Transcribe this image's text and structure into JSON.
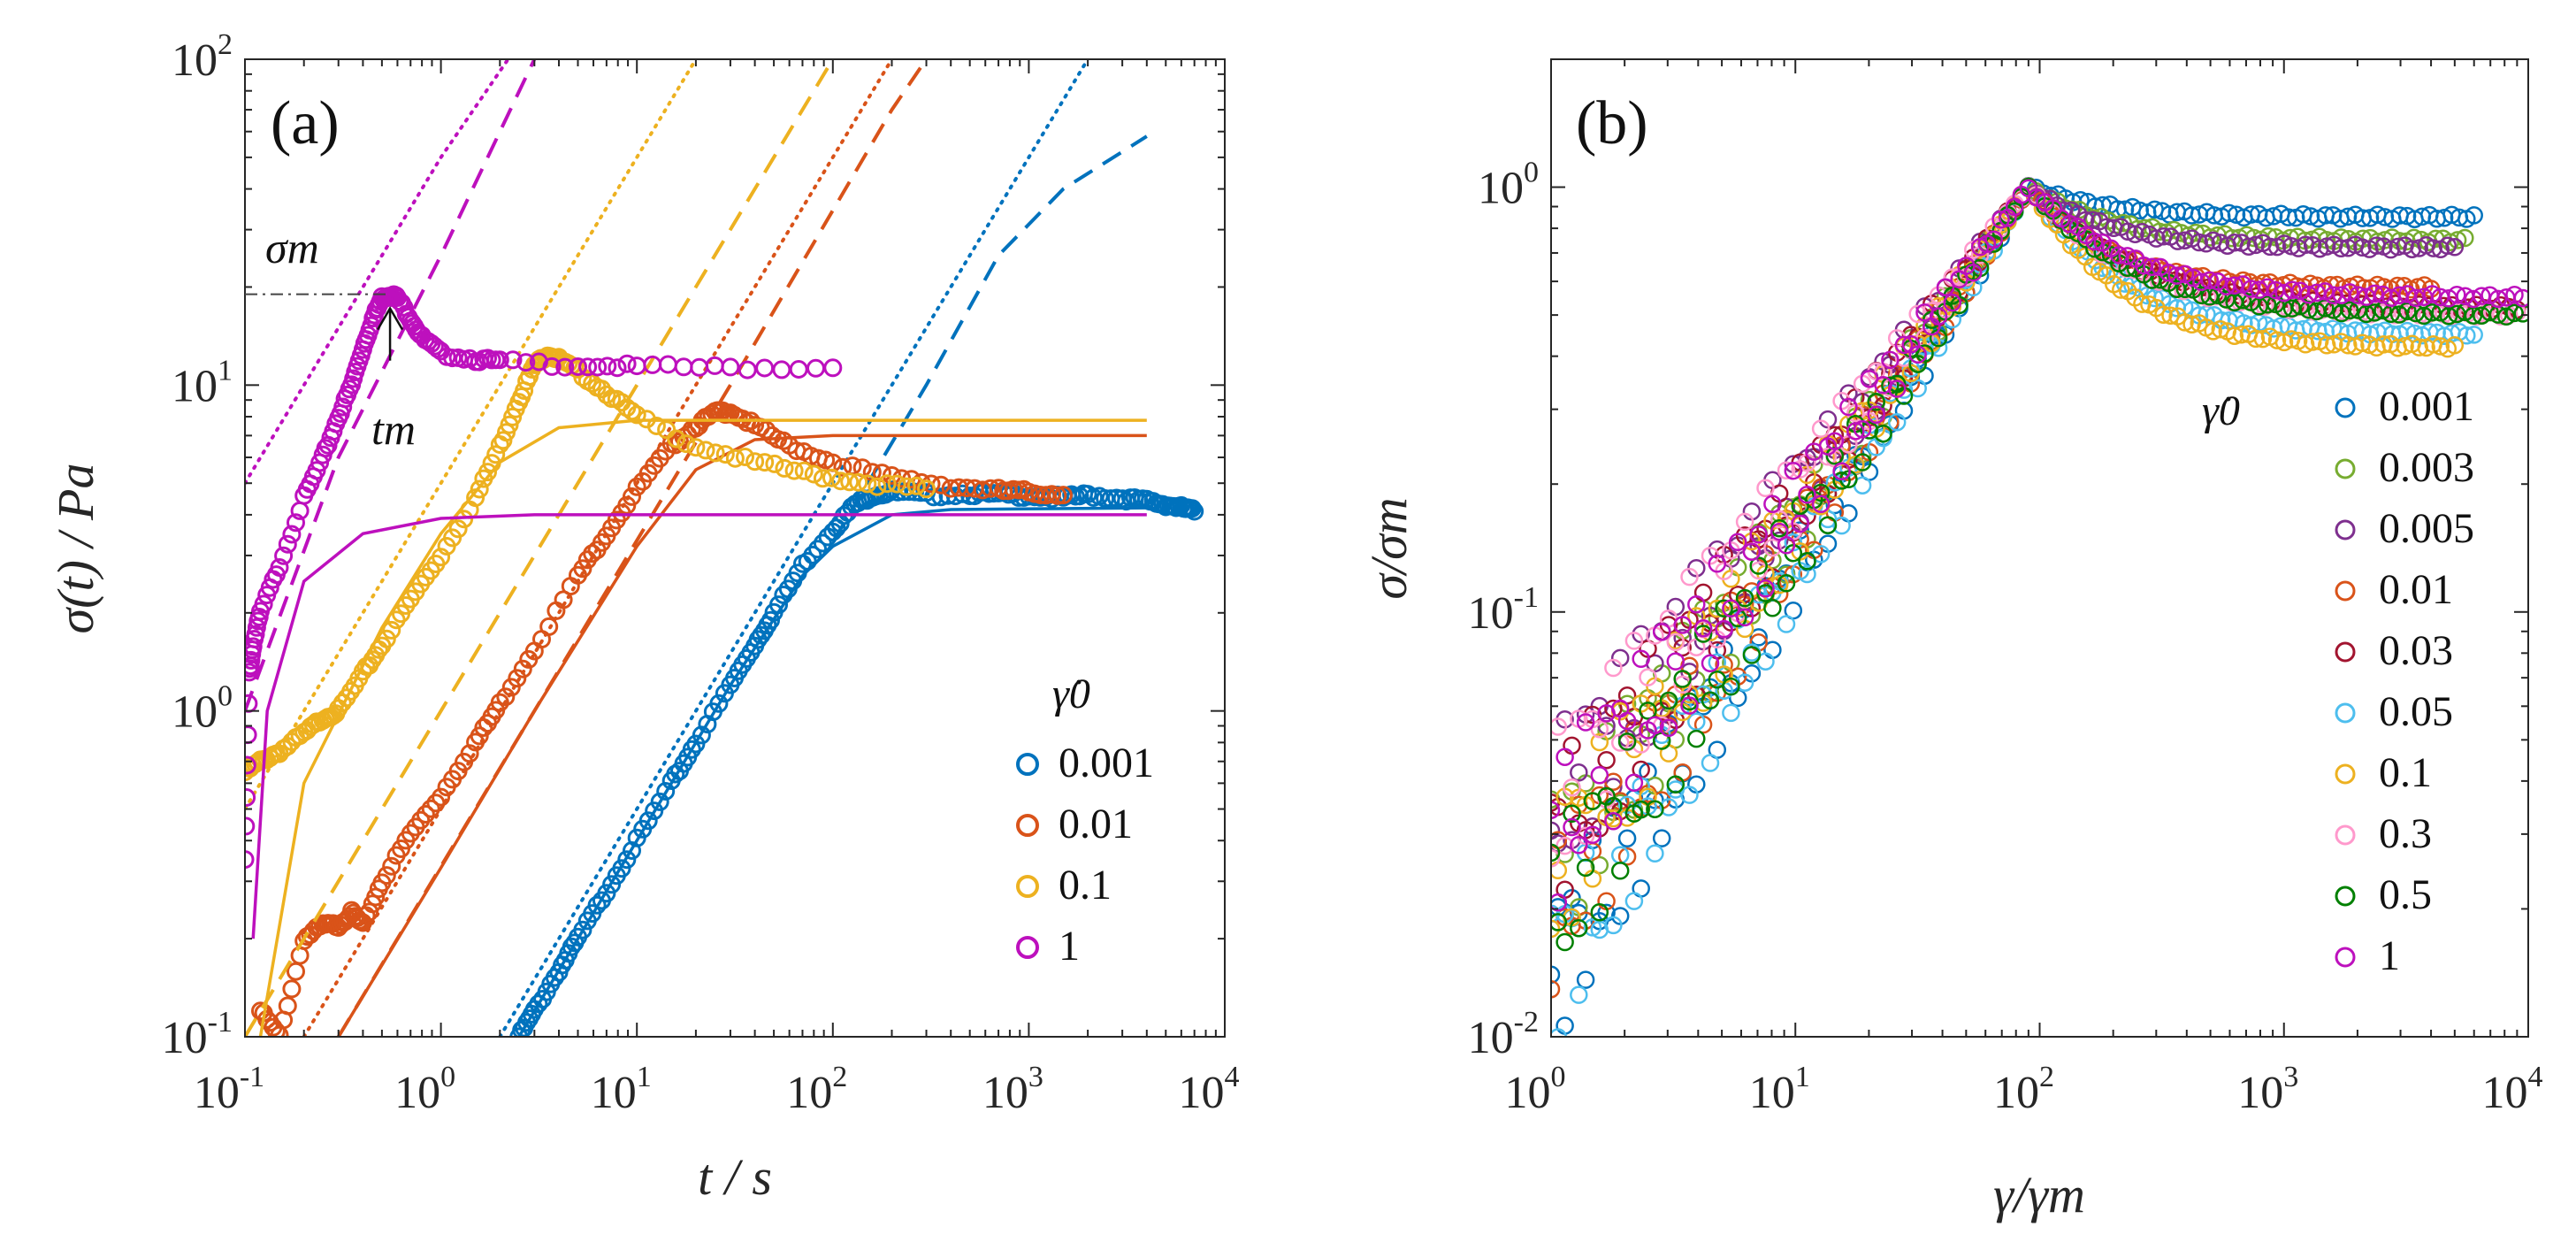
{
  "chart_data": [
    {
      "panel": "(a)",
      "type": "scatter",
      "xlabel": "t / s",
      "ylabel": "σ(t) / Pa",
      "xscale": "log",
      "yscale": "log",
      "xlim": [
        0.1,
        10000
      ],
      "ylim": [
        0.1,
        100
      ],
      "xticks": [
        {
          "base": "10",
          "exp": "-1",
          "v": 0.1
        },
        {
          "base": "10",
          "exp": "0",
          "v": 1
        },
        {
          "base": "10",
          "exp": "1",
          "v": 10
        },
        {
          "base": "10",
          "exp": "2",
          "v": 100
        },
        {
          "base": "10",
          "exp": "3",
          "v": 1000
        },
        {
          "base": "10",
          "exp": "4",
          "v": 10000
        }
      ],
      "yticks": [
        {
          "base": "10",
          "exp": "-1",
          "v": 0.1
        },
        {
          "base": "10",
          "exp": "0",
          "v": 1
        },
        {
          "base": "10",
          "exp": "1",
          "v": 10
        },
        {
          "base": "10",
          "exp": "2",
          "v": 100
        }
      ],
      "legend_title": "γ̇0",
      "legend_position": "lower-right",
      "annotations": {
        "sigma_m": "σm",
        "t_m": "tm",
        "sigma_m_value": 19,
        "t_m_value": 0.55
      },
      "series": [
        {
          "name": "0.001",
          "color": "#0072BD",
          "points": [
            [
              2.5,
              0.1
            ],
            [
              3,
              0.12
            ],
            [
              4,
              0.16
            ],
            [
              5,
              0.2
            ],
            [
              7,
              0.28
            ],
            [
              10,
              0.4
            ],
            [
              15,
              0.6
            ],
            [
              20,
              0.8
            ],
            [
              30,
              1.2
            ],
            [
              40,
              1.6
            ],
            [
              50,
              2.0
            ],
            [
              70,
              2.8
            ],
            [
              100,
              3.6
            ],
            [
              130,
              4.3
            ],
            [
              160,
              4.6
            ],
            [
              200,
              4.7
            ],
            [
              300,
              4.6
            ],
            [
              500,
              4.65
            ],
            [
              700,
              4.6
            ],
            [
              1000,
              4.6
            ],
            [
              1500,
              4.5
            ],
            [
              2000,
              4.6
            ],
            [
              3000,
              4.5
            ],
            [
              4000,
              4.4
            ],
            [
              5000,
              4.3
            ],
            [
              6000,
              4.2
            ],
            [
              7000,
              4.1
            ]
          ],
          "fit_solid": [
            [
              2.5,
              0.1
            ],
            [
              10,
              0.4
            ],
            [
              30,
              1.2
            ],
            [
              70,
              2.6
            ],
            [
              100,
              3.2
            ],
            [
              200,
              4.0
            ],
            [
              400,
              4.15
            ],
            [
              4000,
              4.2
            ]
          ],
          "fit_dashed": [
            [
              100,
              3.3
            ],
            [
              300,
              10
            ],
            [
              700,
              25
            ],
            [
              1500,
              40
            ],
            [
              4000,
              58
            ]
          ],
          "fit_dotted": [
            [
              2,
              0.1
            ],
            [
              20,
              1
            ],
            [
              200,
              10
            ],
            [
              1000,
              50
            ],
            [
              2000,
              100
            ]
          ]
        },
        {
          "name": "0.01",
          "color": "#D95319",
          "points": [
            [
              0.12,
              0.12
            ],
            [
              0.15,
              0.1
            ],
            [
              0.2,
              0.2
            ],
            [
              0.25,
              0.22
            ],
            [
              0.3,
              0.22
            ],
            [
              0.35,
              0.24
            ],
            [
              0.4,
              0.22
            ],
            [
              0.5,
              0.3
            ],
            [
              0.7,
              0.42
            ],
            [
              1,
              0.55
            ],
            [
              1.5,
              0.8
            ],
            [
              2,
              1.05
            ],
            [
              3,
              1.55
            ],
            [
              5,
              2.6
            ],
            [
              7,
              3.5
            ],
            [
              10,
              4.8
            ],
            [
              15,
              6.5
            ],
            [
              20,
              7.5
            ],
            [
              25,
              8.2
            ],
            [
              30,
              8.3
            ],
            [
              40,
              7.5
            ],
            [
              60,
              6.5
            ],
            [
              100,
              5.8
            ],
            [
              200,
              5.2
            ],
            [
              400,
              4.9
            ],
            [
              700,
              4.75
            ],
            [
              1000,
              4.7
            ],
            [
              1500,
              4.6
            ]
          ],
          "fit_solid": [
            [
              0.3,
              0.1
            ],
            [
              1,
              0.33
            ],
            [
              3,
              1.0
            ],
            [
              10,
              3.2
            ],
            [
              20,
              5.5
            ],
            [
              40,
              6.8
            ],
            [
              100,
              7.0
            ],
            [
              4000,
              7.0
            ]
          ],
          "fit_dashed": [
            [
              0.3,
              0.1
            ],
            [
              3,
              1
            ],
            [
              30,
              10
            ],
            [
              200,
              70
            ],
            [
              300,
              100
            ]
          ],
          "fit_dotted": [
            [
              0.2,
              0.1
            ],
            [
              2,
              1
            ],
            [
              20,
              10
            ],
            [
              200,
              100
            ]
          ]
        },
        {
          "name": "0.1",
          "color": "#EDB120",
          "points": [
            [
              0.1,
              0.65
            ],
            [
              0.12,
              0.7
            ],
            [
              0.15,
              0.75
            ],
            [
              0.2,
              0.85
            ],
            [
              0.25,
              0.95
            ],
            [
              0.3,
              1.0
            ],
            [
              0.4,
              1.3
            ],
            [
              0.5,
              1.6
            ],
            [
              0.7,
              2.2
            ],
            [
              1,
              3.0
            ],
            [
              1.5,
              4.5
            ],
            [
              2,
              6.5
            ],
            [
              2.5,
              9
            ],
            [
              3,
              11.5
            ],
            [
              3.5,
              12.5
            ],
            [
              4,
              12
            ],
            [
              5,
              11
            ],
            [
              7,
              9.5
            ],
            [
              10,
              8
            ],
            [
              20,
              6.5
            ],
            [
              40,
              5.8
            ],
            [
              80,
              5.3
            ],
            [
              150,
              5.0
            ],
            [
              300,
              4.8
            ]
          ],
          "fit_solid": [
            [
              0.12,
              0.1
            ],
            [
              0.2,
              0.6
            ],
            [
              0.5,
              1.8
            ],
            [
              1,
              3.5
            ],
            [
              2,
              5.8
            ],
            [
              4,
              7.4
            ],
            [
              10,
              7.8
            ],
            [
              4000,
              7.8
            ]
          ],
          "fit_dashed": [
            [
              0.1,
              0.1
            ],
            [
              1,
              1
            ],
            [
              10,
              10
            ],
            [
              30,
              30
            ],
            [
              100,
              100
            ]
          ],
          "fit_dotted": [
            [
              0.1,
              0.5
            ],
            [
              1,
              5
            ],
            [
              3,
              15
            ],
            [
              20,
              100
            ]
          ]
        },
        {
          "name": "1",
          "color": "#BD10BD",
          "points": [
            [
              0.1,
              0.35
            ],
            [
              0.105,
              1.3
            ],
            [
              0.11,
              1.6
            ],
            [
              0.12,
              2.0
            ],
            [
              0.15,
              2.8
            ],
            [
              0.2,
              4.5
            ],
            [
              0.25,
              6
            ],
            [
              0.3,
              8
            ],
            [
              0.35,
              10
            ],
            [
              0.4,
              13
            ],
            [
              0.45,
              16
            ],
            [
              0.5,
              18.5
            ],
            [
              0.55,
              19
            ],
            [
              0.6,
              18.5
            ],
            [
              0.7,
              16
            ],
            [
              0.8,
              14
            ],
            [
              1,
              12.5
            ],
            [
              1.5,
              12
            ],
            [
              2,
              11.8
            ],
            [
              5,
              11.5
            ],
            [
              10,
              11.4
            ],
            [
              30,
              11.3
            ],
            [
              100,
              11.3
            ]
          ],
          "fit_solid": [
            [
              0.11,
              0.2
            ],
            [
              0.13,
              1
            ],
            [
              0.2,
              2.5
            ],
            [
              0.4,
              3.5
            ],
            [
              1,
              3.9
            ],
            [
              3,
              4.0
            ],
            [
              4000,
              4.0
            ]
          ],
          "fit_dashed": [
            [
              0.1,
              1
            ],
            [
              0.3,
              6
            ],
            [
              1,
              25
            ],
            [
              3,
              100
            ]
          ],
          "fit_dotted": [
            [
              0.1,
              5
            ],
            [
              0.5,
              25
            ],
            [
              1,
              50
            ],
            [
              2.2,
              100
            ]
          ]
        }
      ]
    },
    {
      "panel": "(b)",
      "type": "scatter",
      "xlabel": "γ/γm",
      "ylabel": "σ/σm",
      "xscale": "log",
      "yscale": "log",
      "xlim": [
        1,
        10000
      ],
      "ylim": [
        0.01,
        2
      ],
      "xticks": [
        {
          "base": "10",
          "exp": "0",
          "v": 1
        },
        {
          "base": "10",
          "exp": "1",
          "v": 10
        },
        {
          "base": "10",
          "exp": "2",
          "v": 100
        },
        {
          "base": "10",
          "exp": "3",
          "v": 1000
        },
        {
          "base": "10",
          "exp": "4",
          "v": 10000
        }
      ],
      "yticks": [
        {
          "base": "10",
          "exp": "-2",
          "v": 0.01
        },
        {
          "base": "10",
          "exp": "-1",
          "v": 0.1
        },
        {
          "base": "10",
          "exp": "0",
          "v": 1
        }
      ],
      "legend_title": "γ̇0",
      "legend_position": "right",
      "series": [
        {
          "name": "0.001",
          "color": "#0072BD",
          "plateau": 0.85,
          "end": 6000
        },
        {
          "name": "0.003",
          "color": "#77AC30",
          "plateau": 0.75,
          "end": 5500
        },
        {
          "name": "0.005",
          "color": "#7E2F8E",
          "plateau": 0.72,
          "end": 5000
        },
        {
          "name": "0.01",
          "color": "#D95319",
          "plateau": 0.58,
          "end": 4000
        },
        {
          "name": "0.03",
          "color": "#A2142F",
          "plateau": 0.52,
          "end": 9000
        },
        {
          "name": "0.05",
          "color": "#4DBEEE",
          "plateau": 0.45,
          "end": 6000
        },
        {
          "name": "0.1",
          "color": "#EDB120",
          "plateau": 0.42,
          "end": 5000
        },
        {
          "name": "0.3",
          "color": "#FF99CC",
          "plateau": 0.5,
          "end": 9000
        },
        {
          "name": "0.5",
          "color": "#008000",
          "plateau": 0.5,
          "end": 9500
        },
        {
          "name": "1",
          "color": "#BD10BD",
          "plateau": 0.55,
          "end": 9500
        }
      ]
    }
  ],
  "colors": {
    "axis": "#262626",
    "annotation_line": "#444444"
  }
}
